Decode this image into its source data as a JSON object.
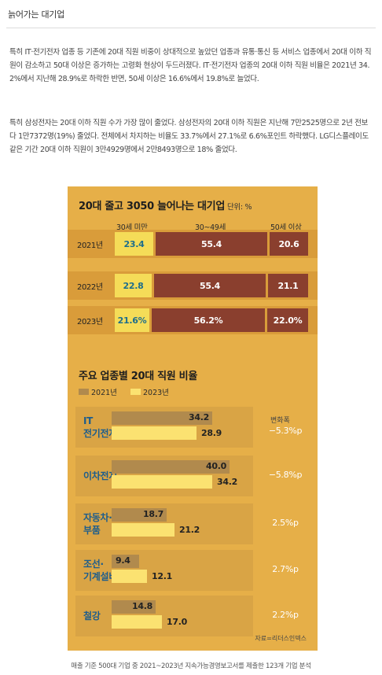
{
  "page": {
    "title": "늙어가는 대기업",
    "paragraph1": "특히 IT·전기전자 업종 등 기존에 20대 직원 비중이 상대적으로 높았던 업종과 유통·통신 등 서비스 업종에서 20대 이하 직원이 감소하고 50대 이상은 증가하는 고령화 현상이 두드러졌다. IT·전기전자 업종의 20대 이하 직원 비율은 2021년 34.2%에서 지난해 28.9%로 하락한 반면, 50세 이상은 16.6%에서 19.8%로 늘었다.",
    "paragraph2": "특히 삼성전자는 20대 이하 직원 수가 가장 많이 줄었다. 삼성전자의 20대 이하 직원은 지난해 7만2525명으로 2년 전보다 1만7372명(19%) 줄었다. 전체에서 차지하는 비율도 33.7%에서 27.1%로 6.6%포인트 하락했다. LG디스플레이도 같은 기간 20대 이하 직원이 3만4929명에서 2만8493명으로 18% 줄었다.",
    "caption": "매출 기준 500대 기업 중 2021~2023년 지속가능경영보고서를 제출한 123개 기업 분석"
  },
  "infographic": {
    "title": "20대 줄고 3050 늘어나는 대기업",
    "unit": "단위: %",
    "columns": [
      "30세 미만",
      "30~49세",
      "50세 이상"
    ],
    "colors": {
      "background": "#e6af48",
      "young": "#f5dc58",
      "older": "#8a3f2e",
      "bar2021": "#b18a4d",
      "bar2023": "#fbe271"
    },
    "age_rows": [
      {
        "year": "2021년",
        "young": "23.4",
        "mid": "55.4",
        "old": "20.6",
        "young_num": 23.4,
        "mid_num": 55.4,
        "old_num": 20.6
      },
      {
        "year": "2022년",
        "young": "22.8",
        "mid": "55.4",
        "old": "21.1",
        "young_num": 22.8,
        "mid_num": 55.4,
        "old_num": 21.1
      },
      {
        "year": "2023년",
        "young": "21.6%",
        "mid": "56.2%",
        "old": "22.0%",
        "young_num": 21.6,
        "mid_num": 56.2,
        "old_num": 22.0
      }
    ],
    "industry_section": {
      "title": "주요 업종별 20대 직원 비율",
      "legend": [
        "2021년",
        "2023년"
      ],
      "change_header": "변화폭",
      "rows": [
        {
          "label": "IT\n전기전자",
          "v2021": "34.2",
          "v2023": "28.9",
          "n2021": 34.2,
          "n2023": 28.9,
          "change": "−5.3%p"
        },
        {
          "label": "이차전지",
          "v2021": "40.0",
          "v2023": "34.2",
          "n2021": 40.0,
          "n2023": 34.2,
          "change": "−5.8%p"
        },
        {
          "label": "자동차·\n부품",
          "v2021": "18.7",
          "v2023": "21.2",
          "n2021": 18.7,
          "n2023": 21.2,
          "change": "2.5%p"
        },
        {
          "label": "조선·\n기계설비",
          "v2021": "9.4",
          "v2023": "12.1",
          "n2021": 9.4,
          "n2023": 12.1,
          "change": "2.7%p"
        },
        {
          "label": "철강",
          "v2021": "14.8",
          "v2023": "17.0",
          "n2021": 14.8,
          "n2023": 17.0,
          "change": "2.2%p"
        }
      ]
    },
    "source": "자료=리더스인덱스"
  },
  "chart_data": [
    {
      "type": "bar",
      "title": "20대 줄고 3050 늘어나는 대기업",
      "unit": "단위: %",
      "categories": [
        "2021년",
        "2022년",
        "2023년"
      ],
      "series": [
        {
          "name": "30세 미만",
          "values": [
            23.4,
            22.8,
            21.6
          ]
        },
        {
          "name": "30~49세",
          "values": [
            55.4,
            55.4,
            56.2
          ]
        },
        {
          "name": "50세 이상",
          "values": [
            20.6,
            21.1,
            22.0
          ]
        }
      ],
      "stacked": true
    },
    {
      "type": "bar",
      "title": "주요 업종별 20대 직원 비율",
      "categories": [
        "IT 전기전자",
        "이차전지",
        "자동차·부품",
        "조선·기계설비",
        "철강"
      ],
      "series": [
        {
          "name": "2021년",
          "values": [
            34.2,
            40.0,
            18.7,
            9.4,
            14.8
          ]
        },
        {
          "name": "2023년",
          "values": [
            28.9,
            34.2,
            21.2,
            12.1,
            17.0
          ]
        }
      ],
      "annotations": [
        "−5.3%p",
        "−5.8%p",
        "2.5%p",
        "2.7%p",
        "2.2%p"
      ],
      "legend_position": "top-left"
    }
  ]
}
